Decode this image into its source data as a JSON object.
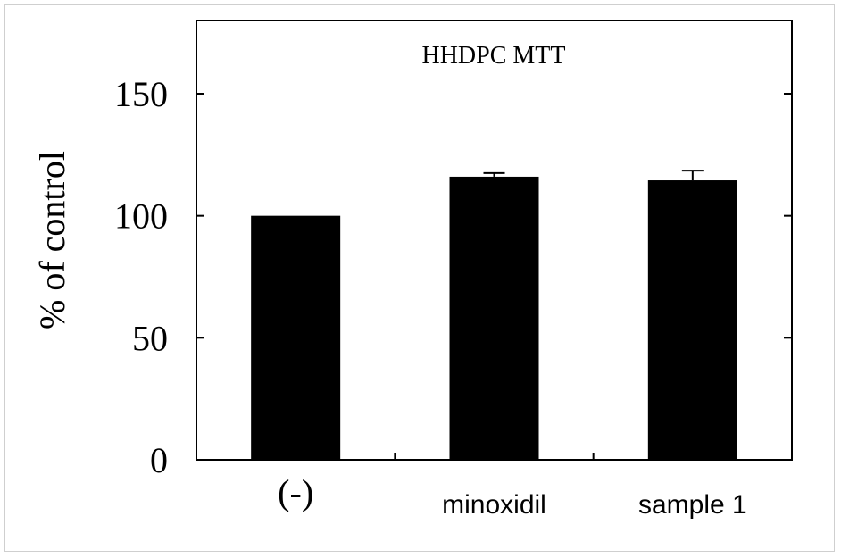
{
  "chart_data": {
    "type": "bar",
    "title": "HHDPC MTT",
    "ylabel": "% of control",
    "xlabel": "",
    "categories": [
      "(-)",
      "minoxidil",
      "sample 1"
    ],
    "values": [
      100,
      116,
      114.5
    ],
    "errors": [
      0,
      1.5,
      4
    ],
    "ylim": [
      0,
      180
    ],
    "yticks": [
      0,
      50,
      100,
      150
    ],
    "legend": "none",
    "grid": false,
    "colors": {
      "bar": "#000000",
      "axis": "#000000"
    }
  }
}
